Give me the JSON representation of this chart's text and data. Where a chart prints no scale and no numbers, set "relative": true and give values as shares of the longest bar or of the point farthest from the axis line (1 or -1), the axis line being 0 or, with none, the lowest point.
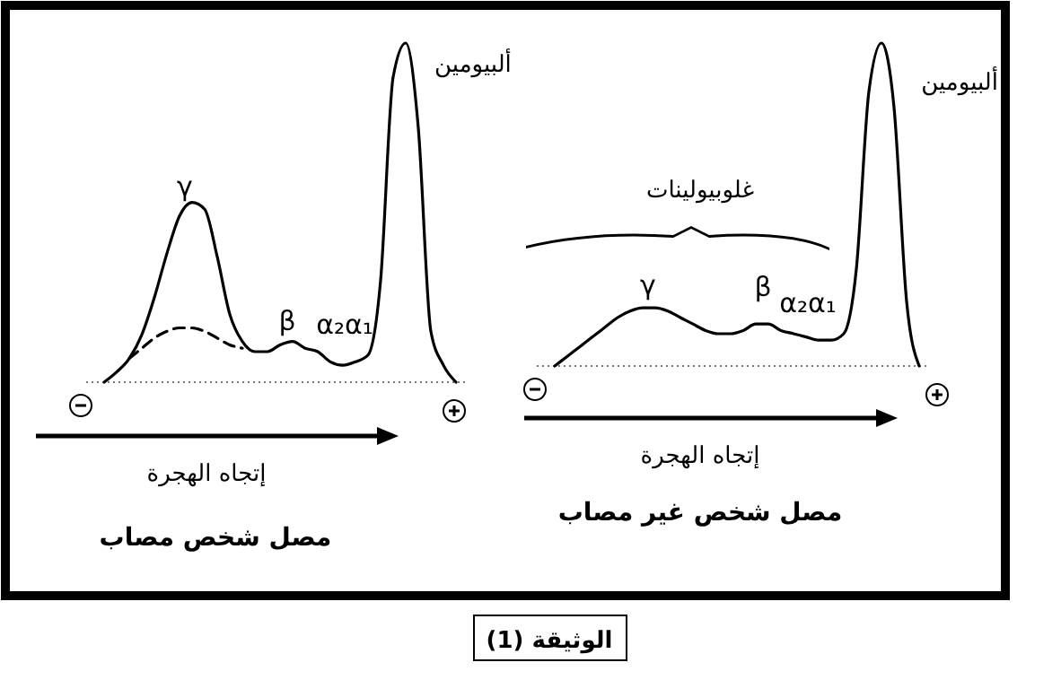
{
  "chart_data": [
    {
      "type": "line",
      "title": "مصل شخص مصاب",
      "xlabel": "إتجاه الهجرة",
      "relative": true,
      "categories": [
        null,
        null,
        null,
        null,
        null,
        null,
        null,
        null,
        null,
        null,
        null,
        null,
        null,
        null,
        null,
        null,
        null,
        null,
        null,
        null,
        null,
        null,
        null,
        null,
        null,
        null,
        null,
        null,
        null
      ],
      "series": [
        {
          "color": "#000000",
          "line_style": "solid",
          "values": [
            0,
            0.03,
            0.07,
            0.14,
            0.25,
            0.38,
            0.49,
            0.53,
            0.51,
            0.37,
            0.2,
            0.12,
            0.09,
            0.09,
            0.11,
            0.12,
            0.1,
            0.09,
            0.06,
            0.05,
            0.06,
            0.08,
            0.3,
            0.9,
            1,
            0.75,
            0.15,
            0.05,
            0
          ]
        },
        {
          "color": "#000000",
          "line_style": "dashed",
          "values": [
            null,
            null,
            0.07,
            0.1,
            0.13,
            0.15,
            0.16,
            0.16,
            0.15,
            0.13,
            0.11,
            0.1,
            null,
            null,
            null,
            null,
            null,
            null,
            null,
            null,
            null,
            null,
            null,
            null,
            null,
            null,
            null,
            null,
            null
          ]
        }
      ],
      "annotations": [
        "γ",
        "β",
        "α₂α₁",
        "ألبيومين",
        "الوثيقة (1)"
      ]
    },
    {
      "type": "line",
      "title": "مصل شخص غير مصاب",
      "xlabel": "إتجاه الهجرة",
      "relative": true,
      "categories": [
        null,
        null,
        null,
        null,
        null,
        null,
        null,
        null,
        null,
        null,
        null,
        null,
        null,
        null,
        null,
        null,
        null,
        null,
        null,
        null,
        null,
        null,
        null,
        null,
        null,
        null,
        null,
        null,
        null,
        null
      ],
      "series": [
        {
          "color": "#000000",
          "line_style": "solid",
          "values": [
            0,
            0.03,
            0.06,
            0.09,
            0.12,
            0.15,
            0.17,
            0.18,
            0.18,
            0.17,
            0.15,
            0.13,
            0.11,
            0.1,
            0.1,
            0.11,
            0.13,
            0.13,
            0.11,
            0.1,
            0.09,
            0.08,
            0.08,
            0.1,
            0.3,
            0.85,
            1,
            0.8,
            0.2,
            0
          ]
        }
      ],
      "annotations": [
        "γ",
        "β",
        "α₂α₁",
        "ألبيومين",
        "غلوبيولينات"
      ]
    }
  ]
}
